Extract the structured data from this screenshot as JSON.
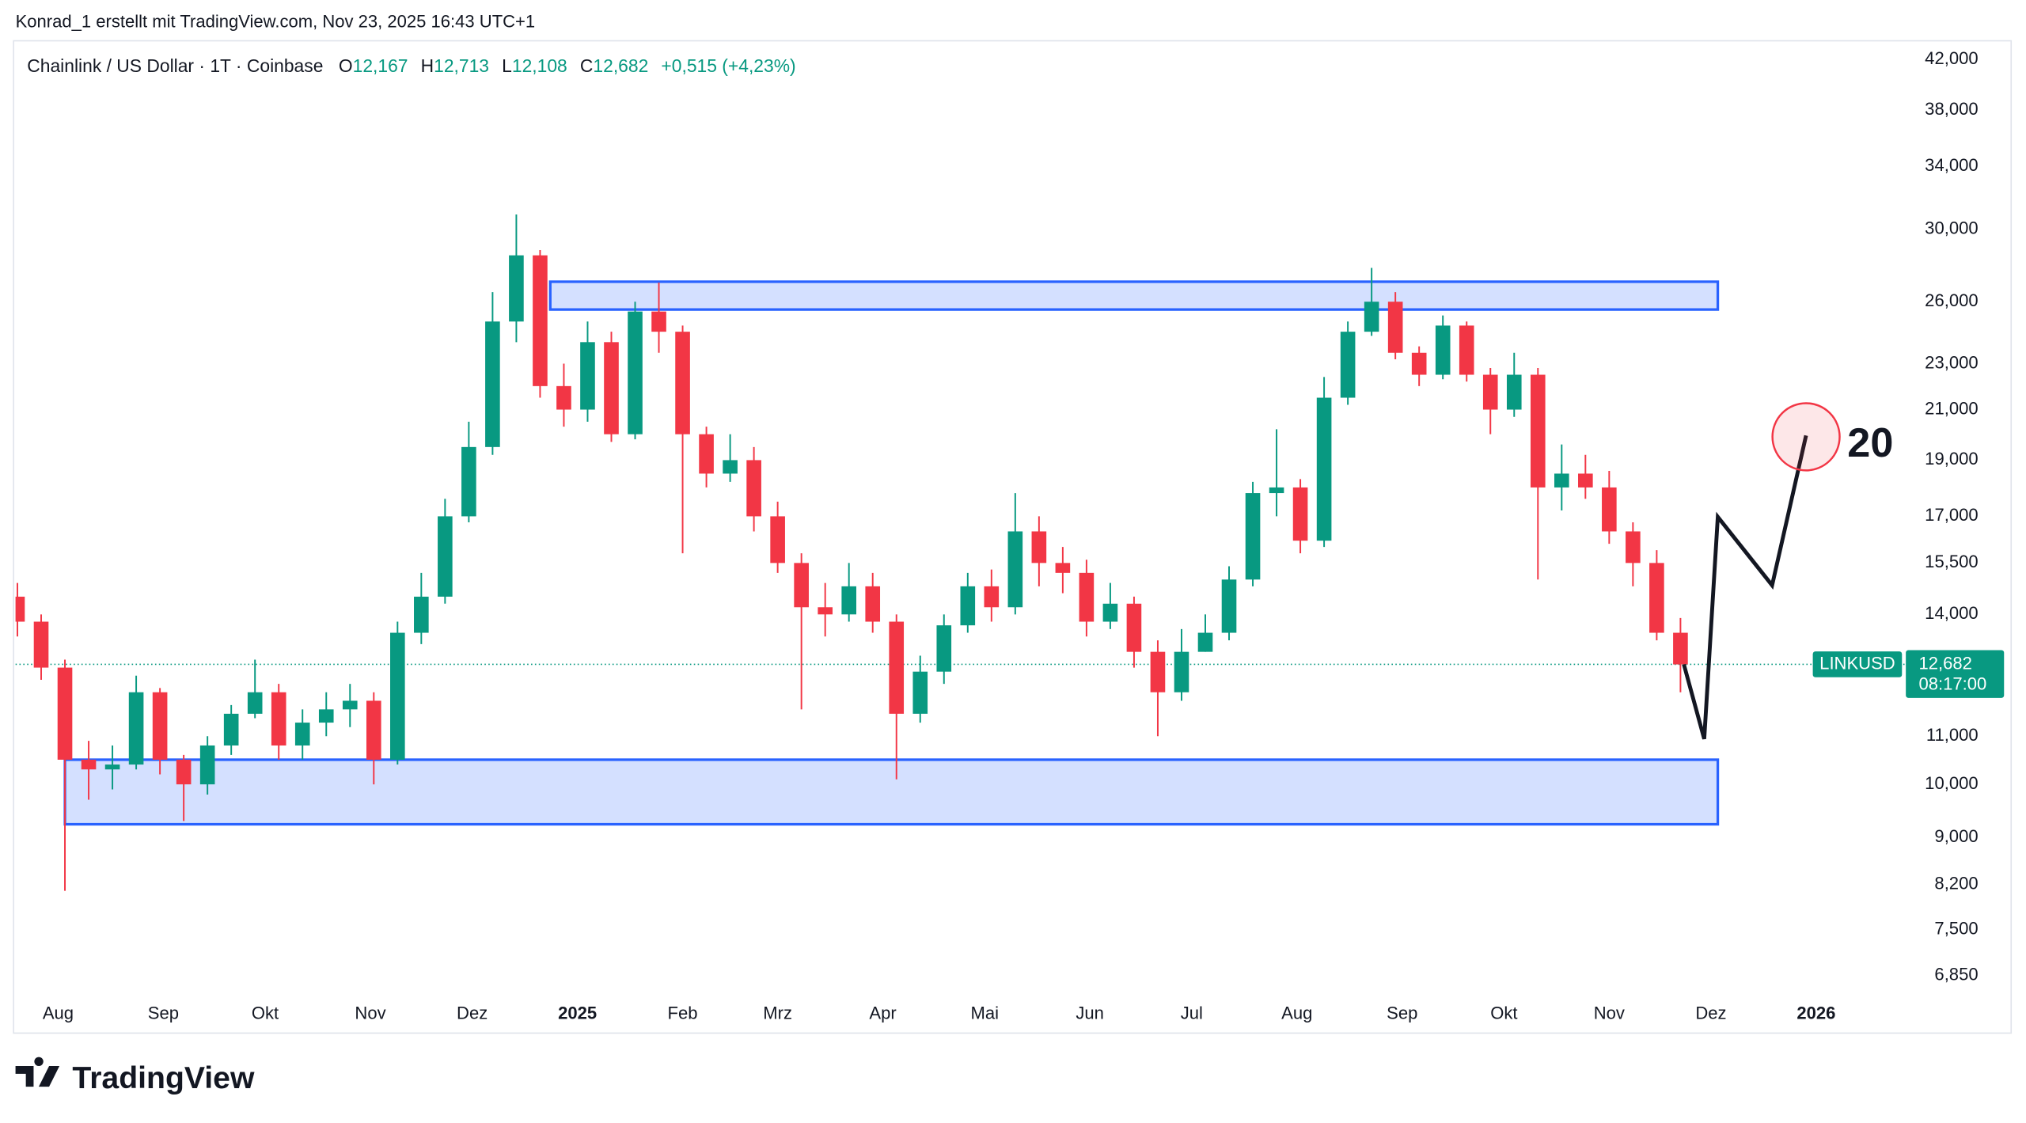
{
  "header": {
    "credit": "Konrad_1 erstellt mit TradingView.com, Nov 23, 2025 16:43 UTC+1",
    "ohlc": [
      {
        "key": "O",
        "text": "12,167"
      },
      {
        "key": "H",
        "text": "12,713"
      },
      {
        "key": "L",
        "text": "12,108"
      },
      {
        "key": "C",
        "text": "12,682"
      }
    ],
    "change": "+0,515 (+4,23%)"
  },
  "chart_data": {
    "type": "candlestick",
    "title": "Chainlink / US Dollar · 1T · Coinbase",
    "log_scale": true,
    "grid": false,
    "up_color": "#089981",
    "down_color": "#f23645",
    "x": [
      -12,
      -5,
      2,
      9,
      16,
      23,
      30,
      37,
      44,
      51,
      58,
      65,
      72,
      79,
      86,
      93,
      100,
      107,
      114,
      121,
      128,
      135,
      142,
      149,
      156,
      163,
      170,
      177,
      184,
      191,
      198,
      205,
      212,
      219,
      226,
      233,
      240,
      247,
      254,
      261,
      268,
      275,
      282,
      289,
      296,
      303,
      310,
      317,
      324,
      331,
      338,
      345,
      352,
      359,
      366,
      373,
      380,
      387,
      394,
      401,
      408,
      415,
      422,
      429,
      436,
      443,
      450,
      457,
      464,
      471,
      478
    ],
    "open": [
      14.5,
      13.8,
      12.6,
      10.5,
      10.3,
      10.4,
      12.0,
      10.5,
      10.0,
      10.8,
      11.5,
      12.0,
      10.8,
      11.3,
      11.6,
      11.8,
      10.5,
      13.5,
      14.5,
      17.0,
      19.5,
      25.0,
      28.5,
      22.0,
      21.0,
      24.0,
      20.0,
      25.5,
      24.5,
      20.0,
      18.5,
      19.0,
      17.0,
      15.5,
      14.2,
      14.0,
      14.8,
      13.8,
      11.5,
      12.5,
      13.7,
      14.8,
      14.2,
      16.5,
      15.5,
      15.2,
      13.8,
      14.3,
      13.0,
      12.0,
      13.0,
      13.5,
      15.0,
      17.8,
      18.0,
      16.2,
      21.5,
      24.5,
      26.0,
      23.5,
      22.5,
      24.8,
      22.5,
      21.0,
      22.5,
      18.0,
      18.5,
      18.0,
      16.5,
      15.5,
      13.5
    ],
    "high": [
      14.9,
      14.0,
      12.8,
      10.9,
      10.8,
      12.4,
      12.1,
      10.6,
      11.0,
      11.7,
      12.8,
      12.2,
      11.6,
      12.0,
      12.2,
      12.0,
      13.8,
      15.2,
      17.6,
      20.5,
      26.5,
      30.9,
      28.8,
      23.0,
      25.0,
      24.5,
      26.0,
      27.0,
      24.8,
      20.3,
      20.0,
      19.5,
      17.5,
      15.8,
      14.9,
      15.5,
      15.2,
      14.0,
      12.9,
      14.0,
      15.2,
      15.3,
      17.8,
      17.0,
      16.0,
      15.6,
      14.9,
      14.5,
      13.3,
      13.6,
      14.0,
      15.4,
      18.2,
      20.2,
      18.3,
      22.4,
      25.0,
      27.8,
      26.5,
      23.8,
      25.3,
      25.0,
      22.8,
      23.5,
      22.8,
      19.6,
      19.2,
      18.6,
      16.8,
      15.9,
      13.9
    ],
    "low": [
      13.4,
      12.3,
      8.1,
      9.7,
      9.9,
      10.3,
      10.2,
      9.3,
      9.8,
      10.6,
      11.4,
      10.5,
      10.5,
      11.0,
      11.2,
      10.0,
      10.4,
      13.2,
      14.3,
      16.8,
      19.2,
      24.0,
      21.5,
      20.3,
      20.5,
      19.7,
      19.8,
      23.5,
      15.8,
      18.0,
      18.2,
      16.5,
      15.2,
      11.6,
      13.4,
      13.8,
      13.5,
      10.1,
      11.3,
      12.2,
      13.5,
      13.8,
      14.0,
      14.8,
      14.6,
      13.4,
      13.6,
      12.6,
      11.0,
      11.8,
      13.0,
      13.3,
      14.8,
      17.0,
      15.8,
      16.0,
      21.2,
      24.3,
      23.2,
      22.0,
      22.3,
      22.2,
      20.0,
      20.7,
      15.0,
      17.2,
      17.6,
      16.1,
      14.8,
      13.3,
      12.0
    ],
    "close": [
      13.8,
      12.6,
      10.5,
      10.3,
      10.4,
      12.0,
      10.5,
      10.0,
      10.8,
      11.5,
      12.0,
      10.8,
      11.3,
      11.6,
      11.8,
      10.5,
      13.5,
      14.5,
      17.0,
      19.5,
      25.0,
      28.5,
      22.0,
      21.0,
      24.0,
      20.0,
      25.5,
      24.5,
      20.0,
      18.5,
      19.0,
      17.0,
      15.5,
      14.2,
      14.0,
      14.8,
      13.8,
      11.5,
      12.5,
      13.7,
      14.8,
      14.2,
      16.5,
      15.5,
      15.2,
      13.8,
      14.3,
      13.0,
      12.0,
      13.0,
      13.5,
      15.0,
      17.8,
      18.0,
      16.2,
      21.5,
      24.5,
      26.0,
      23.5,
      22.5,
      24.8,
      22.5,
      21.0,
      22.5,
      18.0,
      18.5,
      18.0,
      16.5,
      15.5,
      13.5,
      12.68
    ],
    "xlim": [
      -12.56,
      544.4
    ],
    "xticks": [
      {
        "value": 0,
        "label": "Aug"
      },
      {
        "value": 31,
        "label": "Sep"
      },
      {
        "value": 61,
        "label": "Okt"
      },
      {
        "value": 92,
        "label": "Nov"
      },
      {
        "value": 122,
        "label": "Dez"
      },
      {
        "value": 153,
        "label": "2025"
      },
      {
        "value": 184,
        "label": "Feb"
      },
      {
        "value": 212,
        "label": "Mrz"
      },
      {
        "value": 243,
        "label": "Apr"
      },
      {
        "value": 273,
        "label": "Mai"
      },
      {
        "value": 304,
        "label": "Jun"
      },
      {
        "value": 334,
        "label": "Jul"
      },
      {
        "value": 365,
        "label": "Aug"
      },
      {
        "value": 396,
        "label": "Sep"
      },
      {
        "value": 426,
        "label": "Okt"
      },
      {
        "value": 457,
        "label": "Nov"
      },
      {
        "value": 487,
        "label": "Dez"
      },
      {
        "value": 518,
        "label": "2026"
      }
    ],
    "ylim": [
      6.59,
      43.75
    ],
    "yticks": [
      {
        "value": 42,
        "label": "42,000"
      },
      {
        "value": 38,
        "label": "38,000"
      },
      {
        "value": 34,
        "label": "34,000"
      },
      {
        "value": 30,
        "label": "30,000"
      },
      {
        "value": 26,
        "label": "26,000"
      },
      {
        "value": 23,
        "label": "23,000"
      },
      {
        "value": 21,
        "label": "21,000"
      },
      {
        "value": 19,
        "label": "19,000"
      },
      {
        "value": 17,
        "label": "17,000"
      },
      {
        "value": 15.5,
        "label": "15,500"
      },
      {
        "value": 14,
        "label": "14,000"
      },
      {
        "value": 11,
        "label": "11,000"
      },
      {
        "value": 10,
        "label": "10,000"
      },
      {
        "value": 9,
        "label": "9,000"
      },
      {
        "value": 8.2,
        "label": "8,200"
      },
      {
        "value": 7.5,
        "label": "7,500"
      },
      {
        "value": 6.85,
        "label": "6,850"
      }
    ],
    "last_price": {
      "value": 12.682,
      "label": "12,682",
      "symbol": "LINKUSD",
      "countdown": "08:17:00",
      "color": "#089981"
    },
    "zones": [
      {
        "x": [
          145,
          489
        ],
        "y": [
          25.6,
          27.05
        ]
      },
      {
        "x": [
          2,
          489
        ],
        "y": [
          9.24,
          10.5
        ]
      }
    ],
    "zone_color": "#2962ff",
    "projection": {
      "x": [
        479,
        485,
        489,
        505,
        515
      ],
      "y": [
        12.68,
        10.94,
        16.98,
        14.83,
        19.95
      ],
      "label": "20"
    }
  },
  "footer": {
    "logo": "TradingView"
  }
}
